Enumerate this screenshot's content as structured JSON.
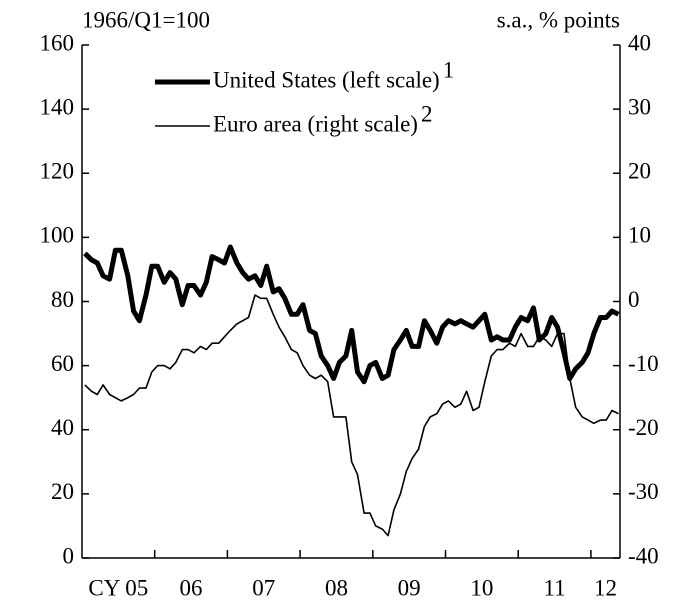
{
  "chart_data": {
    "type": "line",
    "y_label": "1966/Q1=100",
    "y2_label": "s.a., % points",
    "x": [
      2005.04,
      2005.13,
      2005.21,
      2005.29,
      2005.38,
      2005.46,
      2005.54,
      2005.63,
      2005.71,
      2005.79,
      2005.88,
      2005.96,
      2006.04,
      2006.13,
      2006.21,
      2006.29,
      2006.38,
      2006.46,
      2006.54,
      2006.63,
      2006.71,
      2006.79,
      2006.88,
      2006.96,
      2007.04,
      2007.13,
      2007.21,
      2007.29,
      2007.38,
      2007.46,
      2007.54,
      2007.63,
      2007.71,
      2007.79,
      2007.88,
      2007.96,
      2008.04,
      2008.13,
      2008.21,
      2008.29,
      2008.38,
      2008.46,
      2008.54,
      2008.63,
      2008.71,
      2008.79,
      2008.88,
      2008.96,
      2009.04,
      2009.13,
      2009.21,
      2009.29,
      2009.38,
      2009.46,
      2009.54,
      2009.63,
      2009.71,
      2009.79,
      2009.88,
      2009.96,
      2010.04,
      2010.13,
      2010.21,
      2010.29,
      2010.38,
      2010.46,
      2010.54,
      2010.63,
      2010.71,
      2010.79,
      2010.88,
      2010.96,
      2011.04,
      2011.13,
      2011.21,
      2011.29,
      2011.38,
      2011.46,
      2011.54,
      2011.63,
      2011.71,
      2011.79,
      2011.88,
      2011.96,
      2012.04,
      2012.13,
      2012.21,
      2012.29,
      2012.38
    ],
    "series": [
      {
        "name": "United States (left scale)",
        "superscript": "1",
        "color": "#000000",
        "width": 5,
        "values": [
          95,
          93,
          92,
          88,
          87,
          96,
          96,
          88,
          77,
          74,
          82,
          91,
          91,
          86,
          89,
          87,
          79,
          85,
          85,
          82,
          86,
          94,
          93,
          92,
          97,
          92,
          89,
          87,
          88,
          85,
          91,
          83,
          84,
          81,
          76,
          76,
          79,
          71,
          70,
          63,
          60,
          56,
          61,
          63,
          71,
          58,
          55,
          60,
          61,
          56,
          57,
          65,
          68,
          71,
          66,
          66,
          74,
          71,
          67,
          72,
          74,
          73,
          74,
          73,
          72,
          74,
          76,
          68,
          69,
          68,
          68,
          72,
          75,
          74,
          78,
          68,
          70,
          75,
          72,
          64,
          56,
          59,
          61,
          64,
          70,
          75,
          75,
          77,
          76
        ]
      },
      {
        "name": "Euro area (right scale)",
        "superscript": "2",
        "color": "#000000",
        "width": 1.6,
        "axis": "y2",
        "values": [
          -13,
          -14,
          -14.5,
          -13,
          -14.5,
          -15,
          -15.5,
          -15,
          -14.5,
          -13.5,
          -13.5,
          -11,
          -10,
          -10,
          -10.5,
          -9.5,
          -7.5,
          -7.5,
          -8,
          -7,
          -7.5,
          -6.5,
          -6.5,
          -5.5,
          -4.5,
          -3.5,
          -3,
          -2.5,
          1,
          0.5,
          0.5,
          -2,
          -4,
          -5.5,
          -7.5,
          -8,
          -10,
          -11.5,
          -12,
          -11.5,
          -12.5,
          -18,
          -18,
          -18,
          -25,
          -27,
          -33,
          -33,
          -35,
          -35.5,
          -36.5,
          -32.5,
          -30,
          -26.5,
          -24.5,
          -23,
          -19.5,
          -18,
          -17.5,
          -16,
          -15.5,
          -16.5,
          -16,
          -14,
          -17,
          -16.5,
          -12.5,
          -8.5,
          -7.5,
          -7.5,
          -6.5,
          -7,
          -5,
          -7,
          -7,
          -5.5,
          -6,
          -7,
          -5,
          -5,
          -12,
          -16.5,
          -18,
          -18.5,
          -19,
          -18.5,
          -18.5,
          -17,
          -17.5
        ]
      }
    ],
    "xlim": [
      2005,
      2012.4
    ],
    "xticks": [
      {
        "value": 2005.5,
        "label": "CY 05"
      },
      {
        "value": 2006.5,
        "label": "06"
      },
      {
        "value": 2007.5,
        "label": "07"
      },
      {
        "value": 2008.5,
        "label": "08"
      },
      {
        "value": 2009.5,
        "label": "09"
      },
      {
        "value": 2010.5,
        "label": "10"
      },
      {
        "value": 2011.5,
        "label": "11"
      },
      {
        "value": 2012.2,
        "label": "12"
      }
    ],
    "xtick_marks": [
      2006,
      2007,
      2008,
      2009,
      2010,
      2011,
      2012
    ],
    "ylim": [
      0,
      160
    ],
    "yticks": [
      0,
      20,
      40,
      60,
      80,
      100,
      120,
      140,
      160
    ],
    "y2lim": [
      -40,
      40
    ],
    "y2ticks": [
      -40,
      -30,
      -20,
      -10,
      0,
      10,
      20,
      30,
      40
    ]
  }
}
